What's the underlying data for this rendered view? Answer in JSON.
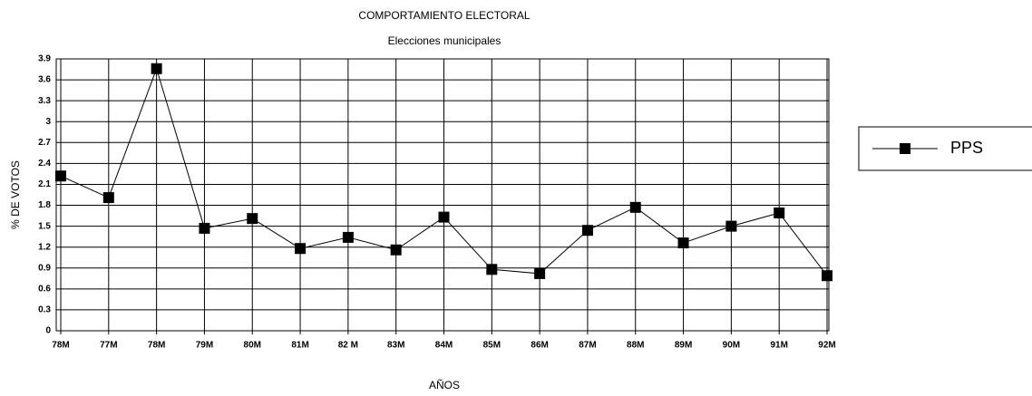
{
  "chart_data": {
    "type": "line",
    "title": "COMPORTAMIENTO ELECTORAL",
    "subtitle": "Elecciones municipales",
    "x_label": "AÑOS",
    "y_label": "% DE VOTOS",
    "categories": [
      "78M",
      "77M",
      "78M",
      "79M",
      "80M",
      "81M",
      "82 M",
      "83M",
      "84M",
      "85M",
      "86M",
      "87M",
      "88M",
      "89M",
      "90M",
      "91M",
      "92M"
    ],
    "series": [
      {
        "name": "PPS",
        "color": "#000000",
        "values": [
          2.22,
          1.91,
          3.76,
          1.47,
          1.61,
          1.18,
          1.34,
          1.16,
          1.63,
          0.88,
          0.82,
          1.44,
          1.77,
          1.26,
          1.5,
          1.69,
          0.79
        ]
      }
    ],
    "ylim": [
      0,
      3.9
    ],
    "yticks": [
      0,
      0.3,
      0.6,
      0.9,
      1.2,
      1.5,
      1.8,
      2.1,
      2.4,
      2.7,
      3,
      3.3,
      3.6,
      3.9
    ],
    "grid": true,
    "legend": "right"
  }
}
